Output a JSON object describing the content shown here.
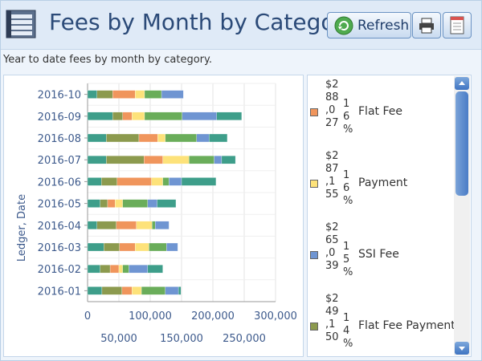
{
  "header": {
    "title": "Fees by Month by Category",
    "refresh_label": "Refresh"
  },
  "subtitle": "Year to date fees by month by category.",
  "legend": [
    {
      "value": "$288,027",
      "pct": "16%",
      "name": "Flat Fee",
      "color": "#f0955c"
    },
    {
      "value": "$287,155",
      "pct": "16%",
      "name": "Payment",
      "color": "#fde27a"
    },
    {
      "value": "$265,039",
      "pct": "15%",
      "name": "SSI Fee",
      "color": "#6f95d2"
    },
    {
      "value": "$249,150",
      "pct": "14%",
      "name": "Flat Fee Payment",
      "color": "#8c9a4e"
    }
  ],
  "chart_data": {
    "type": "bar",
    "orientation": "horizontal",
    "stacked": true,
    "ylabel": "Ledger, Date",
    "categories": [
      "2016-10",
      "2016-09",
      "2016-08",
      "2016-07",
      "2016-06",
      "2016-05",
      "2016-04",
      "2016-03",
      "2016-02",
      "2016-01"
    ],
    "xlim": [
      0,
      300000
    ],
    "xticks_upper": [
      "0",
      "100,000",
      "200,000",
      "300,000"
    ],
    "xticks_lower": [
      "50,000",
      "150,000",
      "250,000"
    ],
    "grid": true,
    "segment_colors": [
      "#3e9e8a",
      "#8c9a4e",
      "#f0955c",
      "#fde27a",
      "#6aad5a",
      "#6f95d2"
    ],
    "series_values": [
      [
        15000,
        25000,
        36000,
        15000,
        27000,
        35000
      ],
      [
        40000,
        16000,
        15000,
        20000,
        60000,
        55000,
        40000
      ],
      [
        30000,
        52000,
        30000,
        12000,
        50000,
        20000,
        29000
      ],
      [
        30000,
        60000,
        30000,
        42000,
        40000,
        12000,
        22000
      ],
      [
        22000,
        25000,
        55000,
        18000,
        10000,
        20000,
        55000
      ],
      [
        20000,
        12000,
        12000,
        12000,
        40000,
        15000,
        30000
      ],
      [
        15000,
        31000,
        32000,
        25000,
        5000,
        22000
      ],
      [
        26000,
        25000,
        25000,
        22000,
        28000,
        18000
      ],
      [
        20000,
        16000,
        14000,
        6000,
        10000,
        30000,
        24000
      ],
      [
        23000,
        32000,
        16000,
        15000,
        38000,
        21000,
        4000
      ]
    ]
  }
}
